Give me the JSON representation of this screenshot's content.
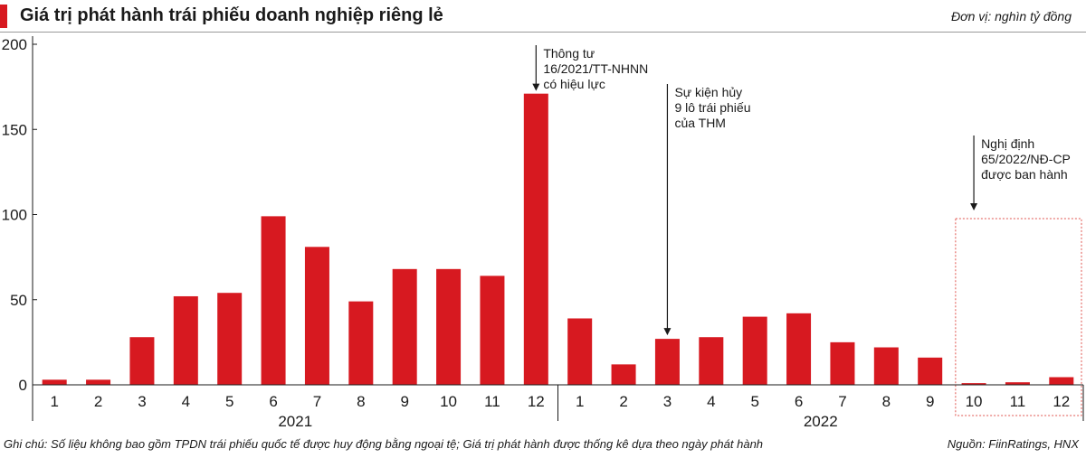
{
  "header": {
    "title": "Giá trị phát hành trái phiếu doanh nghiệp riêng lẻ",
    "unit": "Đơn vị: nghìn tỷ đồng"
  },
  "colors": {
    "bar": "#d71920",
    "accent": "#d71920",
    "highlight_box": "#e0554f"
  },
  "chart_data": {
    "type": "bar",
    "title": "Giá trị phát hành trái phiếu doanh nghiệp riêng lẻ",
    "ylabel": "Đơn vị: nghìn tỷ đồng",
    "xlabel": "",
    "ylim": [
      0,
      200
    ],
    "yticks": [
      0,
      50,
      100,
      150,
      200
    ],
    "grid": false,
    "categories": [
      "1",
      "2",
      "3",
      "4",
      "5",
      "6",
      "7",
      "8",
      "9",
      "10",
      "11",
      "12",
      "1",
      "2",
      "3",
      "4",
      "5",
      "6",
      "7",
      "8",
      "9",
      "10",
      "11",
      "12"
    ],
    "years": [
      {
        "label": "2021",
        "start": 0,
        "end": 11
      },
      {
        "label": "2022",
        "start": 12,
        "end": 23
      }
    ],
    "values": [
      3,
      3,
      28,
      52,
      54,
      99,
      81,
      49,
      68,
      68,
      64,
      171,
      39,
      12,
      27,
      28,
      40,
      42,
      25,
      22,
      16,
      1,
      1.5,
      4.5
    ],
    "annotations": [
      {
        "index": 11,
        "lines": [
          "Thông tư",
          "16/2021/TT-NHNN",
          "có hiệu lực"
        ]
      },
      {
        "index": 14,
        "lines": [
          "Sự kiện hủy",
          "9 lô trái phiếu",
          "của THM"
        ]
      },
      {
        "index": 21,
        "lines": [
          "Nghị định",
          "65/2022/NĐ-CP",
          "được ban hành"
        ]
      }
    ],
    "highlight": {
      "start": 21,
      "end": 23
    }
  },
  "footer": {
    "note": "Ghi chú: Số liệu không bao gồm TPDN trái phiếu quốc tế được huy động bằng ngoại tệ; Giá trị phát hành được thống kê dựa theo ngày phát hành",
    "source": "Nguồn: FiinRatings, HNX"
  }
}
